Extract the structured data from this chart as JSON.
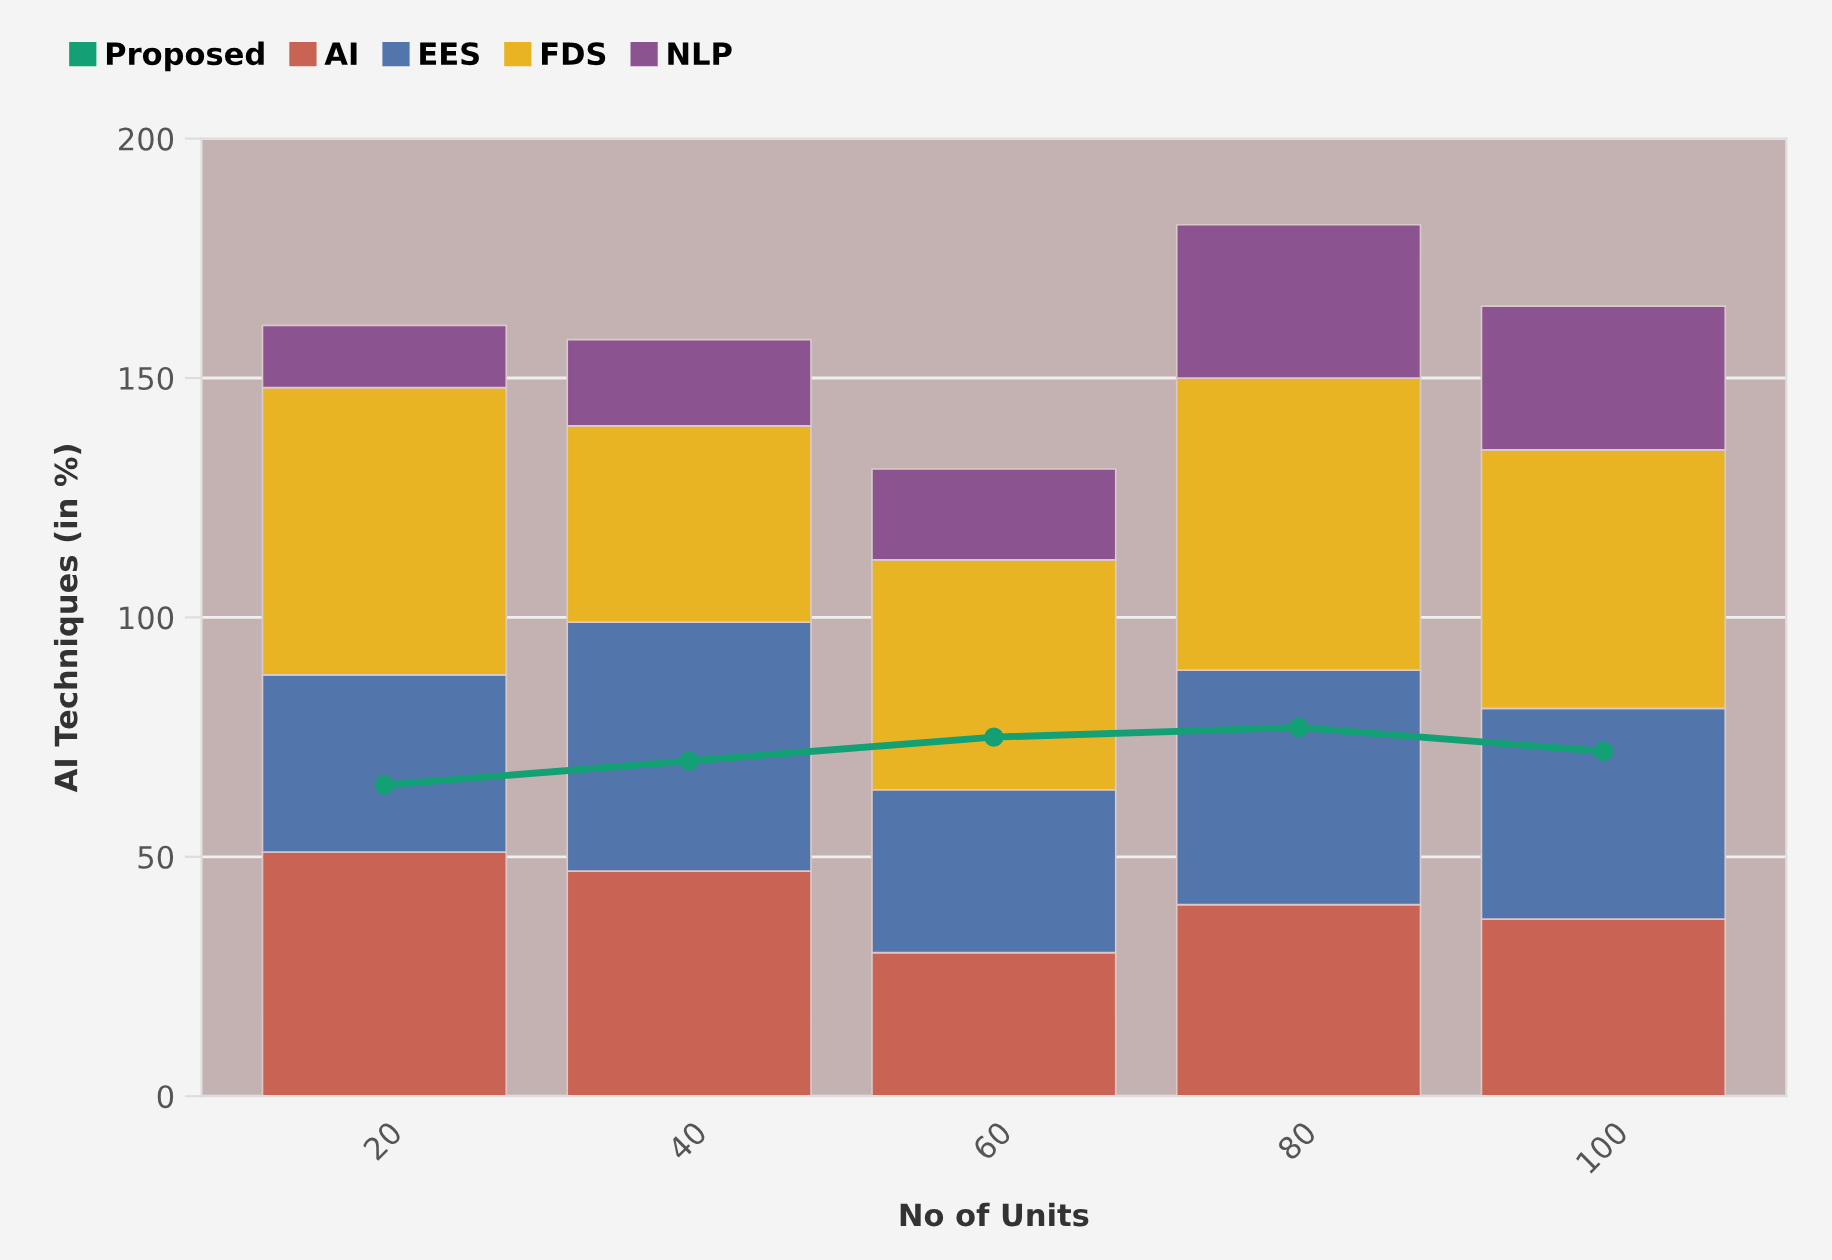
{
  "chart_data": {
    "type": "bar",
    "stacked": true,
    "xlabel": "No of Units",
    "ylabel": "AI Techniques (in %)",
    "categories": [
      "20",
      "40",
      "60",
      "80",
      "100"
    ],
    "series": [
      {
        "name": "Proposed",
        "type": "line",
        "color": "#13a075",
        "values": [
          65,
          70,
          75,
          77,
          72
        ]
      },
      {
        "name": "AI",
        "color": "#c96455",
        "values": [
          51,
          47,
          30,
          40,
          37
        ]
      },
      {
        "name": "EES",
        "color": "#5275ab",
        "values": [
          37,
          52,
          34,
          49,
          44
        ]
      },
      {
        "name": "FDS",
        "color": "#e8b424",
        "values": [
          60,
          41,
          48,
          61,
          54
        ]
      },
      {
        "name": "NLP",
        "color": "#8c5391",
        "values": [
          13,
          18,
          19,
          32,
          30
        ]
      }
    ],
    "ylim": [
      0,
      200
    ],
    "yticks": [
      0,
      50,
      100,
      150,
      200
    ],
    "grid": "y",
    "legend": "top left",
    "marker": "circle",
    "line_style": "solid"
  }
}
